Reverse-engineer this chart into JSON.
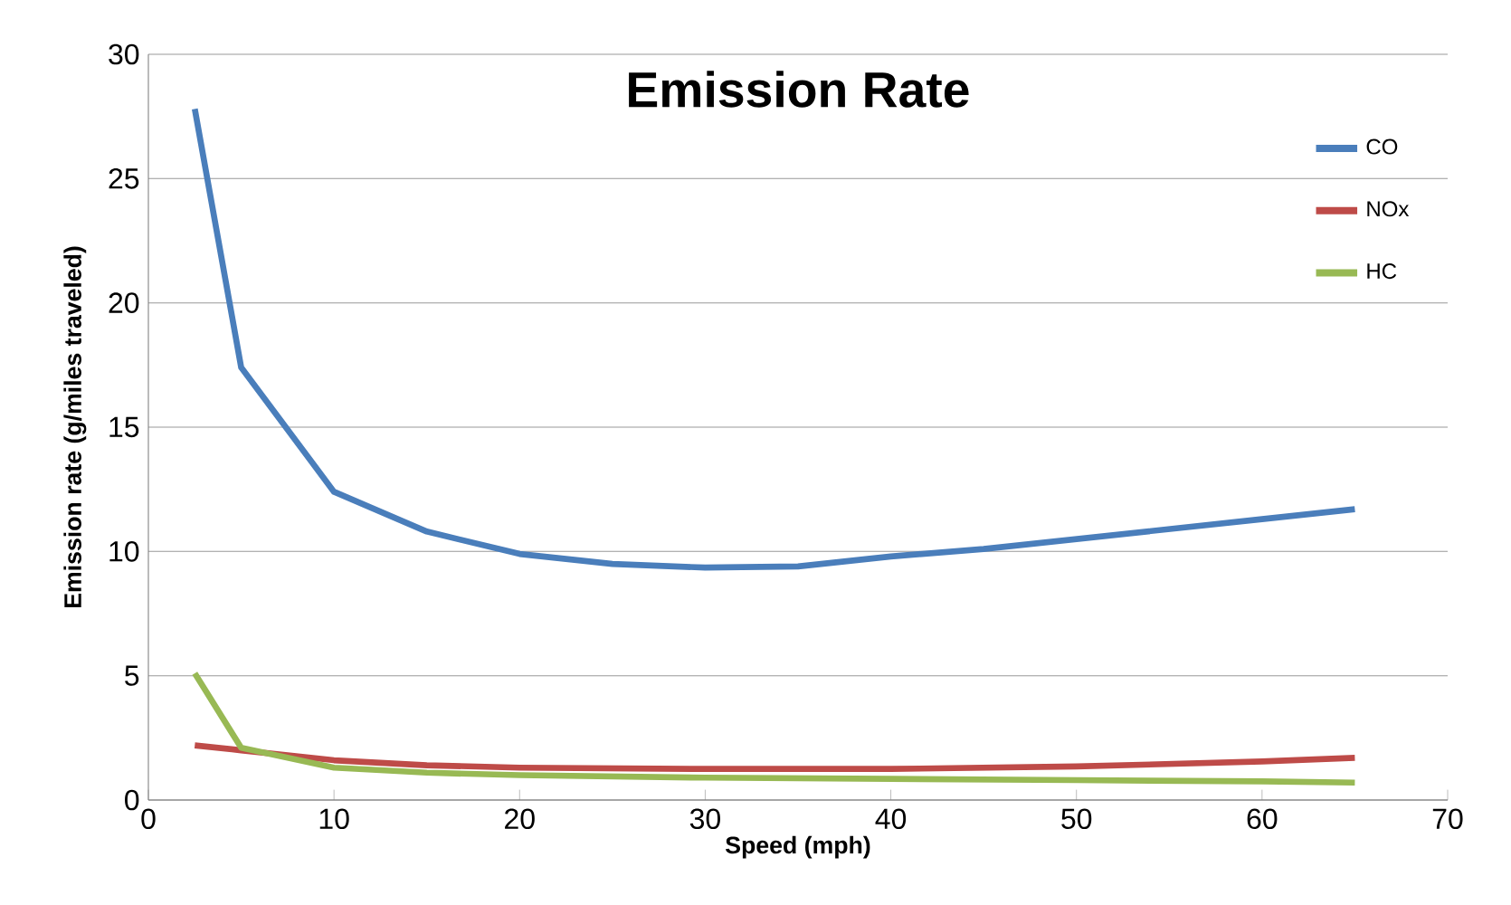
{
  "chart_data": {
    "type": "line",
    "title": "Emission Rate",
    "xlabel": "Speed (mph)",
    "ylabel": "Emission rate (g/miles traveled)",
    "xlim": [
      0,
      70
    ],
    "xticks": [
      0,
      10,
      20,
      30,
      40,
      50,
      60,
      70
    ],
    "ylim": [
      0,
      30
    ],
    "yticks": [
      0,
      5,
      10,
      15,
      20,
      25,
      30
    ],
    "grid": "y",
    "legend": "top right",
    "marker": "none",
    "line_style": "solid",
    "series": [
      {
        "name": "CO",
        "color": "#4a7ebb",
        "x": [
          2.5,
          5,
          10,
          15,
          20,
          25,
          30,
          35,
          40,
          45,
          50,
          55,
          60,
          65
        ],
        "values": [
          27.8,
          17.4,
          12.4,
          10.8,
          9.9,
          9.5,
          9.35,
          9.4,
          9.8,
          10.1,
          10.5,
          10.9,
          11.3,
          11.7
        ]
      },
      {
        "name": "NOx",
        "color": "#be4b48",
        "x": [
          2.5,
          5,
          10,
          15,
          20,
          30,
          40,
          50,
          60,
          65
        ],
        "values": [
          2.2,
          2.0,
          1.6,
          1.4,
          1.3,
          1.25,
          1.25,
          1.35,
          1.55,
          1.7
        ]
      },
      {
        "name": "HC",
        "color": "#98b954",
        "x": [
          2.5,
          5,
          10,
          15,
          20,
          30,
          40,
          50,
          60,
          65
        ],
        "values": [
          5.1,
          2.1,
          1.3,
          1.1,
          1.0,
          0.9,
          0.85,
          0.8,
          0.75,
          0.7
        ]
      }
    ]
  }
}
